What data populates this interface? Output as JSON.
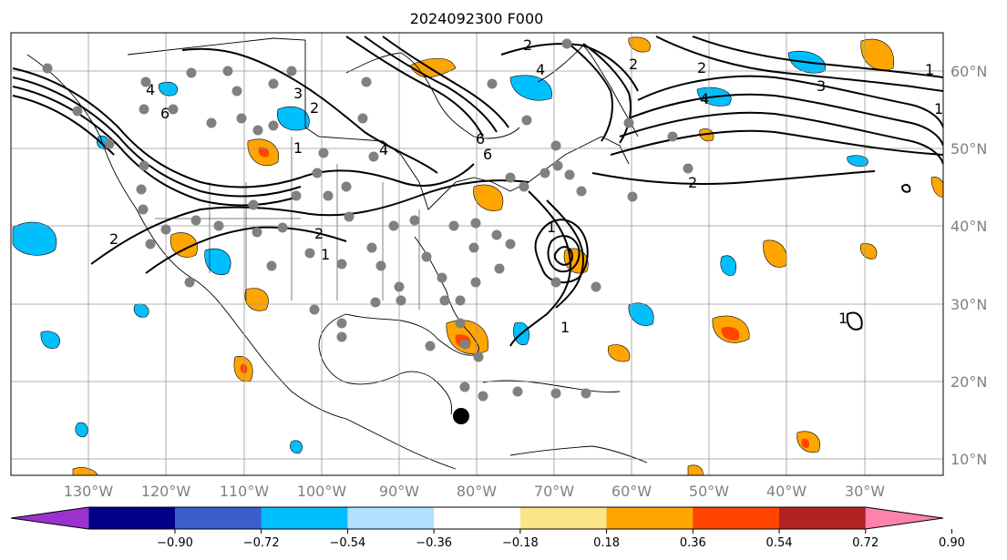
{
  "title": "2024092300 F000",
  "lon_labels": [
    "130°W",
    "120°W",
    "110°W",
    "100°W",
    "90°W",
    "80°W",
    "70°W",
    "60°W",
    "50°W",
    "40°W",
    "30°W"
  ],
  "lat_labels": [
    "60°N",
    "50°N",
    "40°N",
    "30°N",
    "20°N",
    "10°N"
  ],
  "colorbar": {
    "ticks": [
      "−0.90",
      "−0.72",
      "−0.54",
      "−0.36",
      "−0.18",
      "0.18",
      "0.36",
      "0.54",
      "0.72",
      "0.90"
    ],
    "colors": [
      "#9a32cd",
      "#00008b",
      "#3a5fcd",
      "#00bfff",
      "#b0e2ff",
      "#ffffff",
      "#fbe58a",
      "#ffa500",
      "#ff4500",
      "#b22222",
      "#ff82ab"
    ]
  },
  "contour_labels": [
    "2",
    "4",
    "6",
    "1",
    "2",
    "1",
    "2",
    "3",
    "4",
    "6",
    "2",
    "4",
    "6",
    "2",
    "1",
    "2",
    "3",
    "4",
    "1",
    "1",
    "2",
    "1",
    "1"
  ],
  "storm_marker": {
    "label": ""
  }
}
